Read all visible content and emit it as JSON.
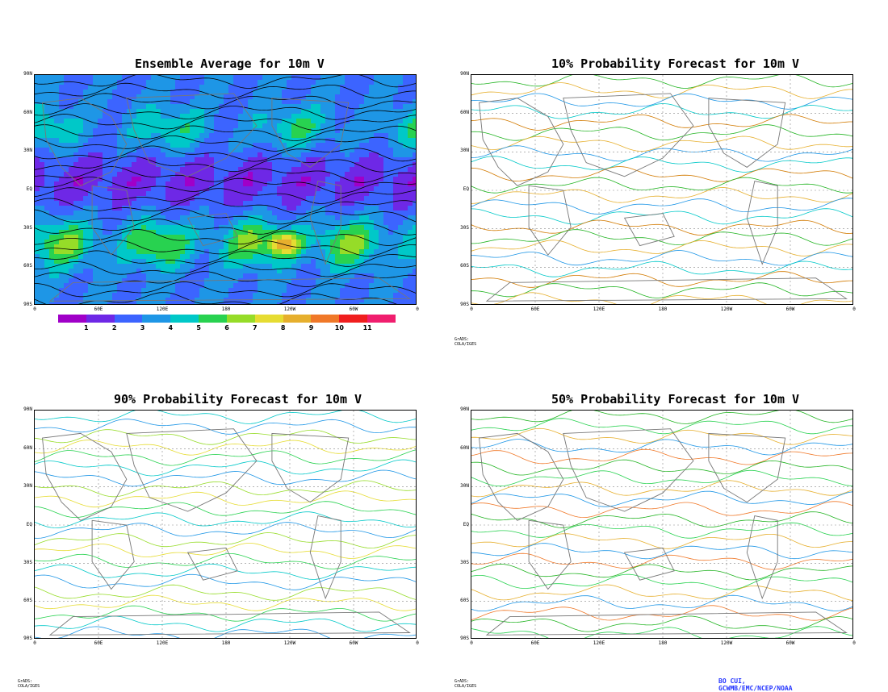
{
  "panels": [
    {
      "title": "Ensemble Average for 10m V",
      "credit": ""
    },
    {
      "title": "10% Probability Forecast for 10m V",
      "credit": "GrADS: COLA/IGES"
    },
    {
      "title": "90% Probability Forecast for 10m V",
      "credit": "GrADS: COLA/IGES"
    },
    {
      "title": "50% Probability Forecast for 10m V",
      "credit": "GrADS: COLA/IGES"
    }
  ],
  "lat_labels": [
    "90N",
    "60N",
    "30N",
    "EQ",
    "30S",
    "60S",
    "90S"
  ],
  "lon_labels": [
    "0",
    "60E",
    "120E",
    "180",
    "120W",
    "60W",
    "0"
  ],
  "colorbar": {
    "labels": [
      "1",
      "2",
      "3",
      "4",
      "5",
      "6",
      "7",
      "8",
      "9",
      "10",
      "11"
    ],
    "colors": [
      "#a000c8",
      "#6e28e6",
      "#3c64ff",
      "#1e96e6",
      "#00c8c8",
      "#28d250",
      "#96dc28",
      "#e6dc32",
      "#e6af2d",
      "#f07828",
      "#f01e1e",
      "#f01e6e"
    ]
  },
  "footer": {
    "credit": "GrADS: COLA/IGES",
    "attribution": "BO CUI, GCWMB/EMC/NCEP/NOAA"
  }
}
